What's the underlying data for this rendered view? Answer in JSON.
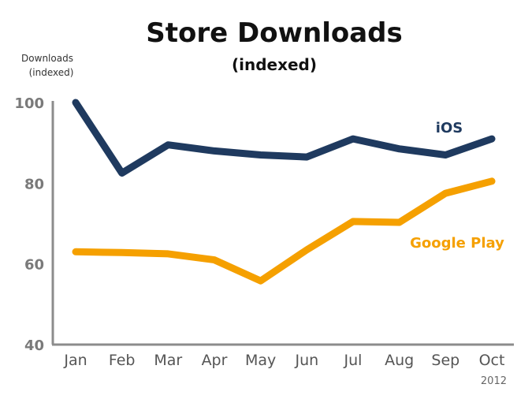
{
  "colors": {
    "ios": "#1f3a5f",
    "google_play": "#f5a000",
    "axis": "#8c8c8c"
  },
  "chart_data": {
    "type": "line",
    "title": "Store Downloads",
    "subtitle": "(indexed)",
    "ylabel": "Downloads (indexed)",
    "ylabel_lines": [
      "Downloads",
      "(indexed)"
    ],
    "categories": [
      "Jan",
      "Feb",
      "Mar",
      "Apr",
      "May",
      "Jun",
      "Jul",
      "Aug",
      "Sep",
      "Oct"
    ],
    "yticks": [
      40,
      60,
      80,
      100
    ],
    "ylim": [
      40,
      100
    ],
    "grid": false,
    "note": "2012",
    "series": [
      {
        "name": "iOS",
        "color": "#1f3a5f",
        "values": [
          100,
          82.5,
          89.5,
          88,
          87,
          86.5,
          91,
          88.5,
          87,
          91
        ]
      },
      {
        "name": "Google Play",
        "color": "#f5a000",
        "values": [
          63,
          62.8,
          62.5,
          61,
          55.8,
          63.5,
          70.5,
          70.3,
          77.5,
          80.5
        ]
      }
    ]
  }
}
